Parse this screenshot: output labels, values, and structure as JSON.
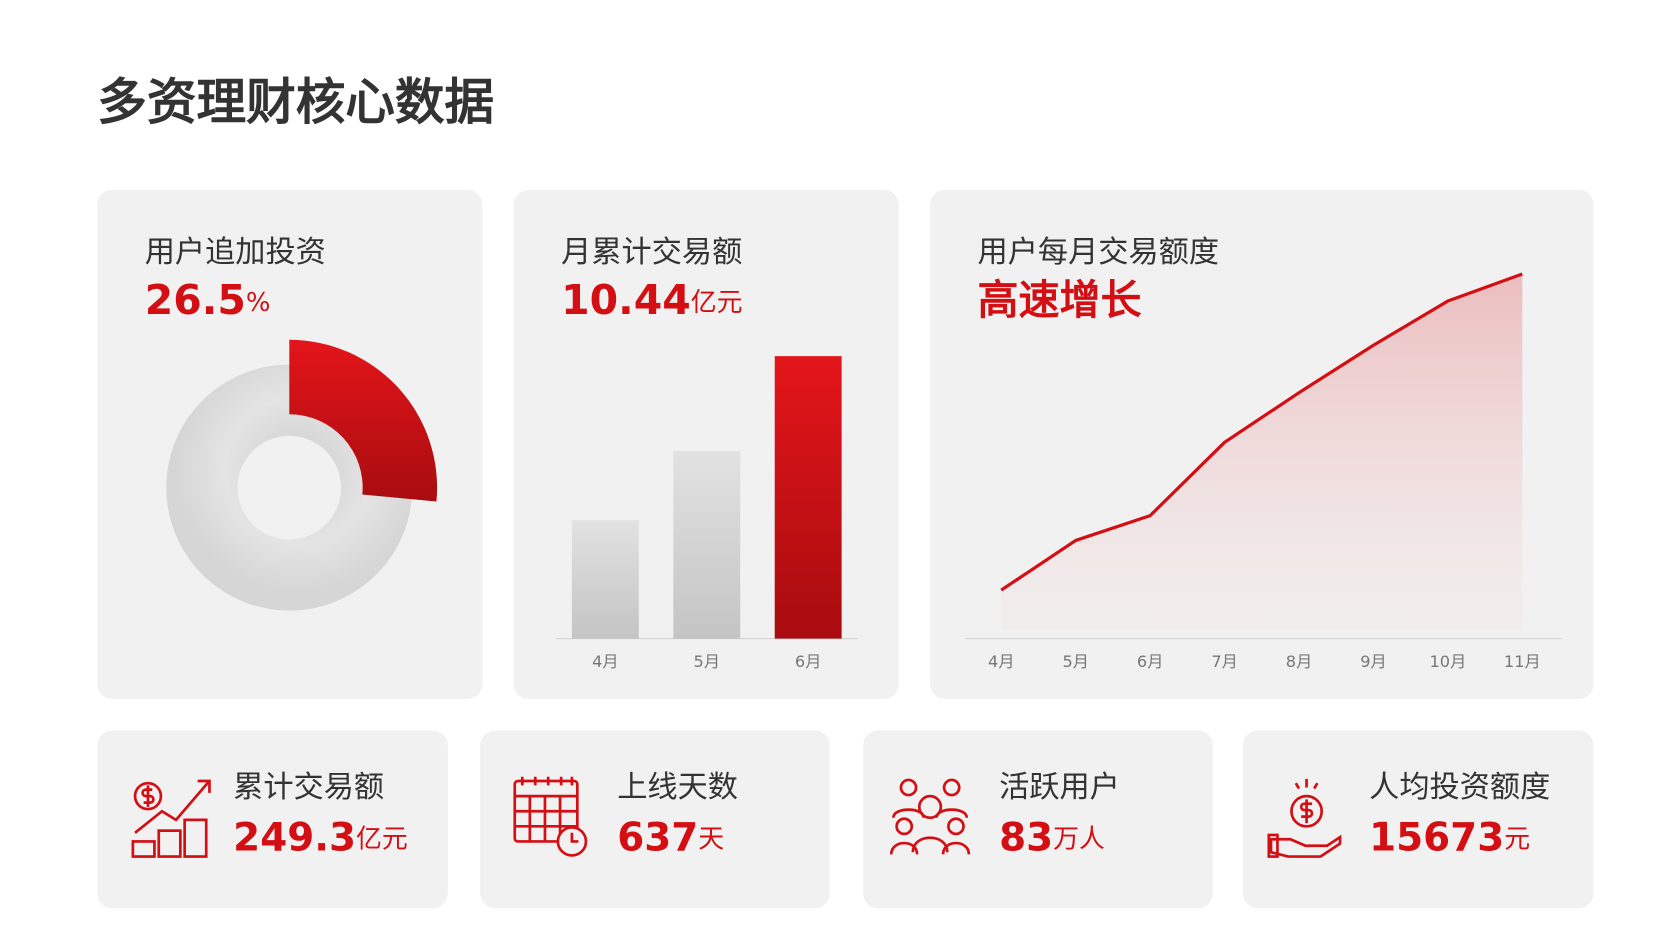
{
  "title": "多资理财核心数据",
  "chart_data": [
    {
      "type": "pie",
      "title": "用户追加投资",
      "values": [
        26.5
      ],
      "unit": "%",
      "color": "#d40f14"
    },
    {
      "type": "bar",
      "title": "月累计交易额",
      "headline": "10.44",
      "unit": "亿元",
      "categories": [
        "4月",
        "5月",
        "6月"
      ],
      "values": [
        4.38,
        6.93,
        10.44
      ],
      "colors": [
        "#d6d6d6",
        "#d6d6d6",
        "#d40f14"
      ],
      "ylim": [
        0,
        12
      ]
    },
    {
      "type": "line",
      "title": "用户每月交易额度",
      "headline": "高速增长",
      "categories": [
        "4月",
        "5月",
        "6月",
        "7月",
        "8月",
        "9月",
        "10月",
        "11月"
      ],
      "values": [
        45,
        91,
        114,
        182,
        228,
        272,
        313,
        338
      ],
      "color": "#d40f14",
      "ylim": [
        0,
        350
      ]
    }
  ],
  "stats": [
    {
      "label": "累计交易额",
      "value": "249.3",
      "unit": "亿元"
    },
    {
      "label": "上线天数",
      "value": "637",
      "unit": "天"
    },
    {
      "label": "活跃用户",
      "value": "83",
      "unit": "万人"
    },
    {
      "label": "人均投资额度",
      "value": "15673",
      "unit": "元"
    }
  ]
}
